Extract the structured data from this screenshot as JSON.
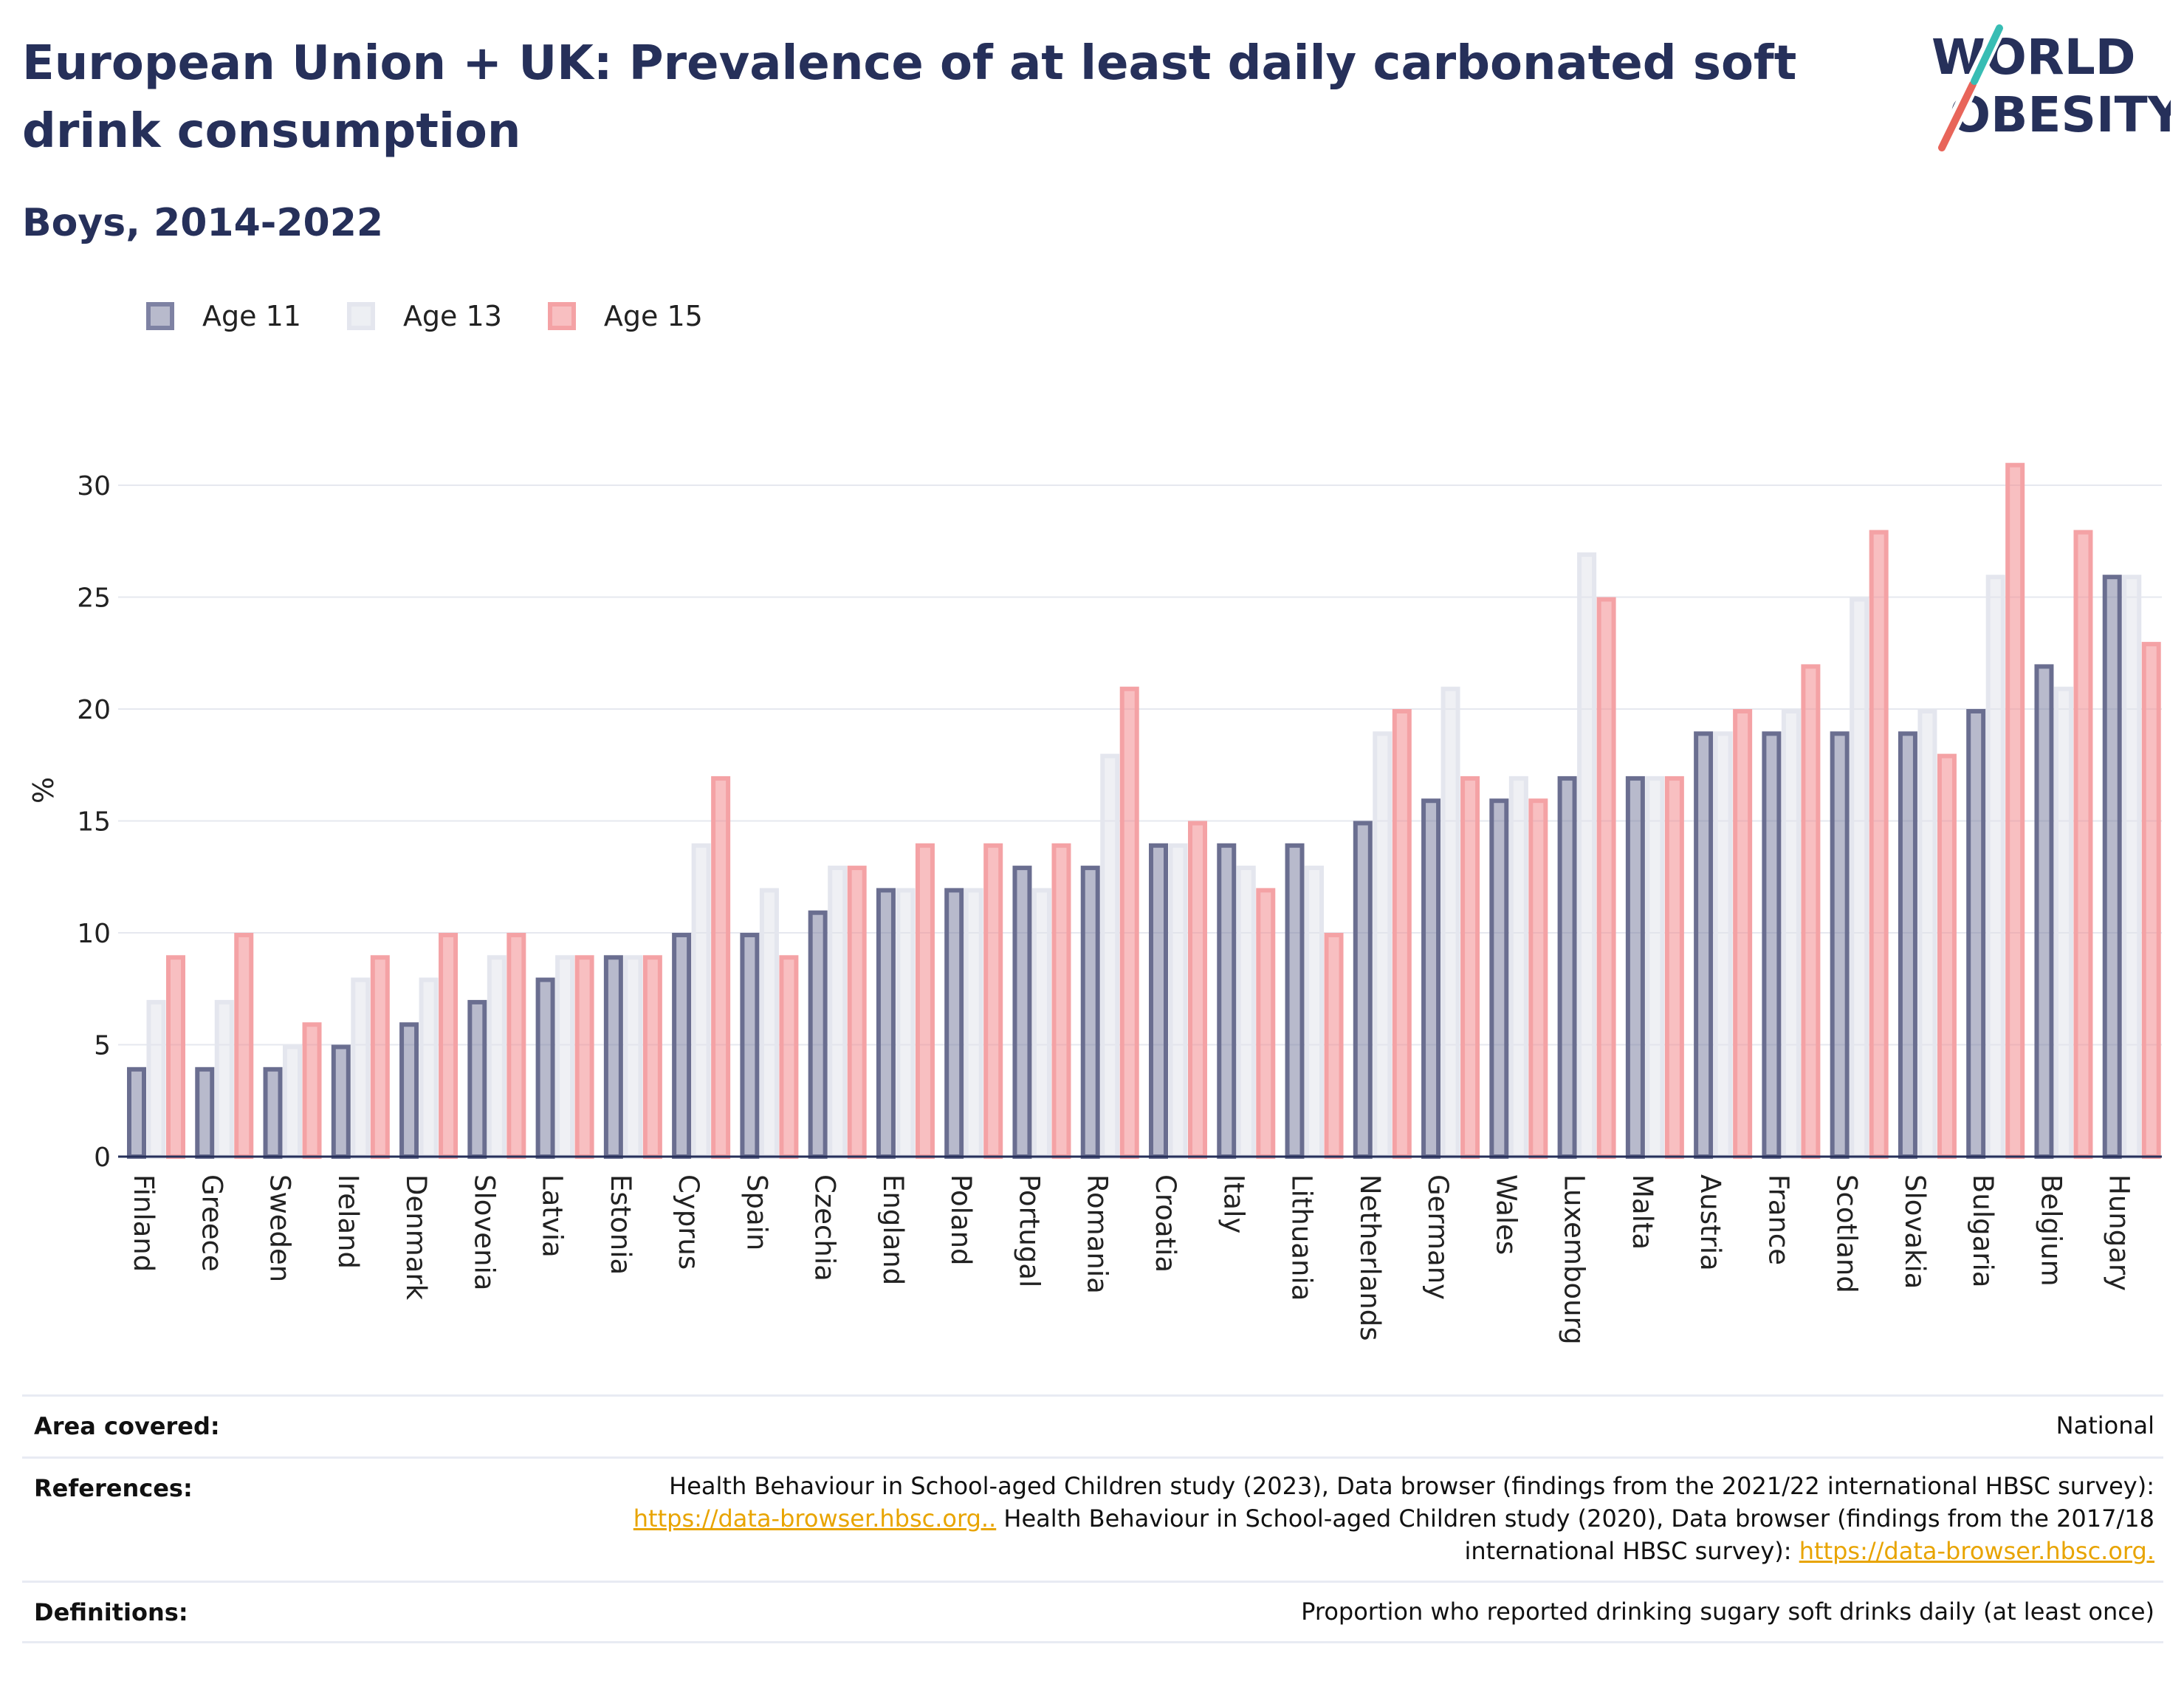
{
  "header": {
    "title": "European Union + UK: Prevalence of at least daily carbonated soft drink consumption",
    "subtitle": "Boys, 2014-2022"
  },
  "logo": {
    "line1": "WORLD",
    "line2": "OBESITY"
  },
  "legend": [
    {
      "label": "Age 11",
      "color": "#7e82a3"
    },
    {
      "label": "Age 13",
      "color": "#dfe1ea"
    },
    {
      "label": "Age 15",
      "color": "#f28b8e"
    }
  ],
  "chart_data": {
    "type": "bar",
    "ylabel": "%",
    "ylim": [
      0,
      32.5
    ],
    "yticks": [
      0,
      5,
      10,
      15,
      20,
      25,
      30
    ],
    "grid": true,
    "legend_position": "top-left",
    "categories": [
      "Finland",
      "Greece",
      "Sweden",
      "Ireland",
      "Denmark",
      "Slovenia",
      "Latvia",
      "Estonia",
      "Cyprus",
      "Spain",
      "Czechia",
      "England",
      "Poland",
      "Portugal",
      "Romania",
      "Croatia",
      "Italy",
      "Lithuania",
      "Netherlands",
      "Germany",
      "Wales",
      "Luxembourg",
      "Malta",
      "Austria",
      "France",
      "Scotland",
      "Slovakia",
      "Bulgaria",
      "Belgium",
      "Hungary"
    ],
    "series": [
      {
        "name": "Age 11",
        "color": "#7e82a3",
        "values": [
          4,
          4,
          4,
          5,
          6,
          7,
          8,
          9,
          10,
          10,
          11,
          12,
          12,
          13,
          13,
          14,
          14,
          14,
          15,
          16,
          16,
          17,
          17,
          19,
          19,
          19,
          19,
          20,
          22,
          26
        ]
      },
      {
        "name": "Age 13",
        "color": "#dfe1ea",
        "values": [
          7,
          7,
          5,
          8,
          8,
          9,
          9,
          9,
          14,
          12,
          13,
          12,
          12,
          12,
          18,
          14,
          13,
          13,
          19,
          21,
          17,
          27,
          17,
          19,
          20,
          25,
          20,
          26,
          21,
          26
        ]
      },
      {
        "name": "Age 15",
        "color": "#f28b8e",
        "values": [
          9,
          10,
          6,
          9,
          10,
          10,
          9,
          9,
          17,
          9,
          13,
          14,
          14,
          14,
          21,
          15,
          12,
          10,
          20,
          17,
          16,
          25,
          17,
          20,
          22,
          28,
          18,
          31,
          28,
          23
        ]
      }
    ]
  },
  "info": {
    "area_key": "Area covered:",
    "area_val": "National",
    "ref_key": "References:",
    "ref_text1": "Health Behaviour in School-aged Children study (2023), Data browser (findings from the 2021/22 international HBSC survey):",
    "ref_link1": "https://data-browser.hbsc.org..",
    "ref_text2": " Health Behaviour in School-aged Children study (2020), Data browser (findings from the 2017/18",
    "ref_text3": "international HBSC survey): ",
    "ref_link2": "https://data-browser.hbsc.org.",
    "def_key": "Definitions:",
    "def_val": "Proportion who reported drinking sugary soft drinks daily (at least once)"
  }
}
